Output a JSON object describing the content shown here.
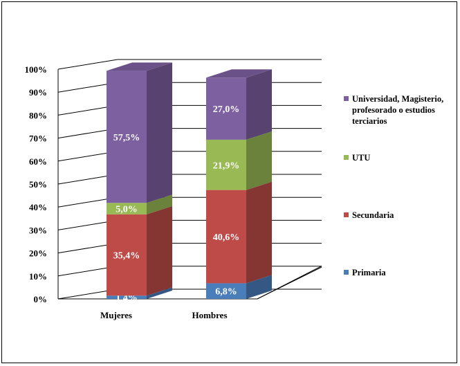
{
  "chart_data": {
    "type": "bar",
    "stacked": true,
    "style": "3d-100%-stacked",
    "categories": [
      "Mujeres",
      "Hombres"
    ],
    "series": [
      {
        "name": "Primaria",
        "values": [
          1.4,
          6.8
        ],
        "labels": [
          "1,4%",
          "6,8%"
        ],
        "color": "#4a7ebb"
      },
      {
        "name": "Secundaria",
        "values": [
          35.4,
          40.6
        ],
        "labels": [
          "35,4%",
          "40,6%"
        ],
        "color": "#be4b48"
      },
      {
        "name": "UTU",
        "values": [
          5.0,
          21.9
        ],
        "labels": [
          "5,0%",
          "21,9%"
        ],
        "color": "#98b954"
      },
      {
        "name": "Universidad, Magisterio, profesorado o estudios terciarios",
        "values": [
          57.5,
          27.0
        ],
        "labels": [
          "57,5%",
          "27,0%"
        ],
        "color": "#7d60a0"
      }
    ],
    "yticks": [
      "0%",
      "10%",
      "20%",
      "30%",
      "40%",
      "50%",
      "60%",
      "70%",
      "80%",
      "90%",
      "100%"
    ],
    "ylim": [
      0,
      100
    ],
    "legend_position": "right",
    "legend_lines": [
      [
        "Universidad, Magisterio,",
        "profesorado o estudios",
        "terciarios"
      ],
      [
        "UTU"
      ],
      [
        "Secundaria"
      ],
      [
        "Primaria"
      ]
    ],
    "grid": true
  }
}
